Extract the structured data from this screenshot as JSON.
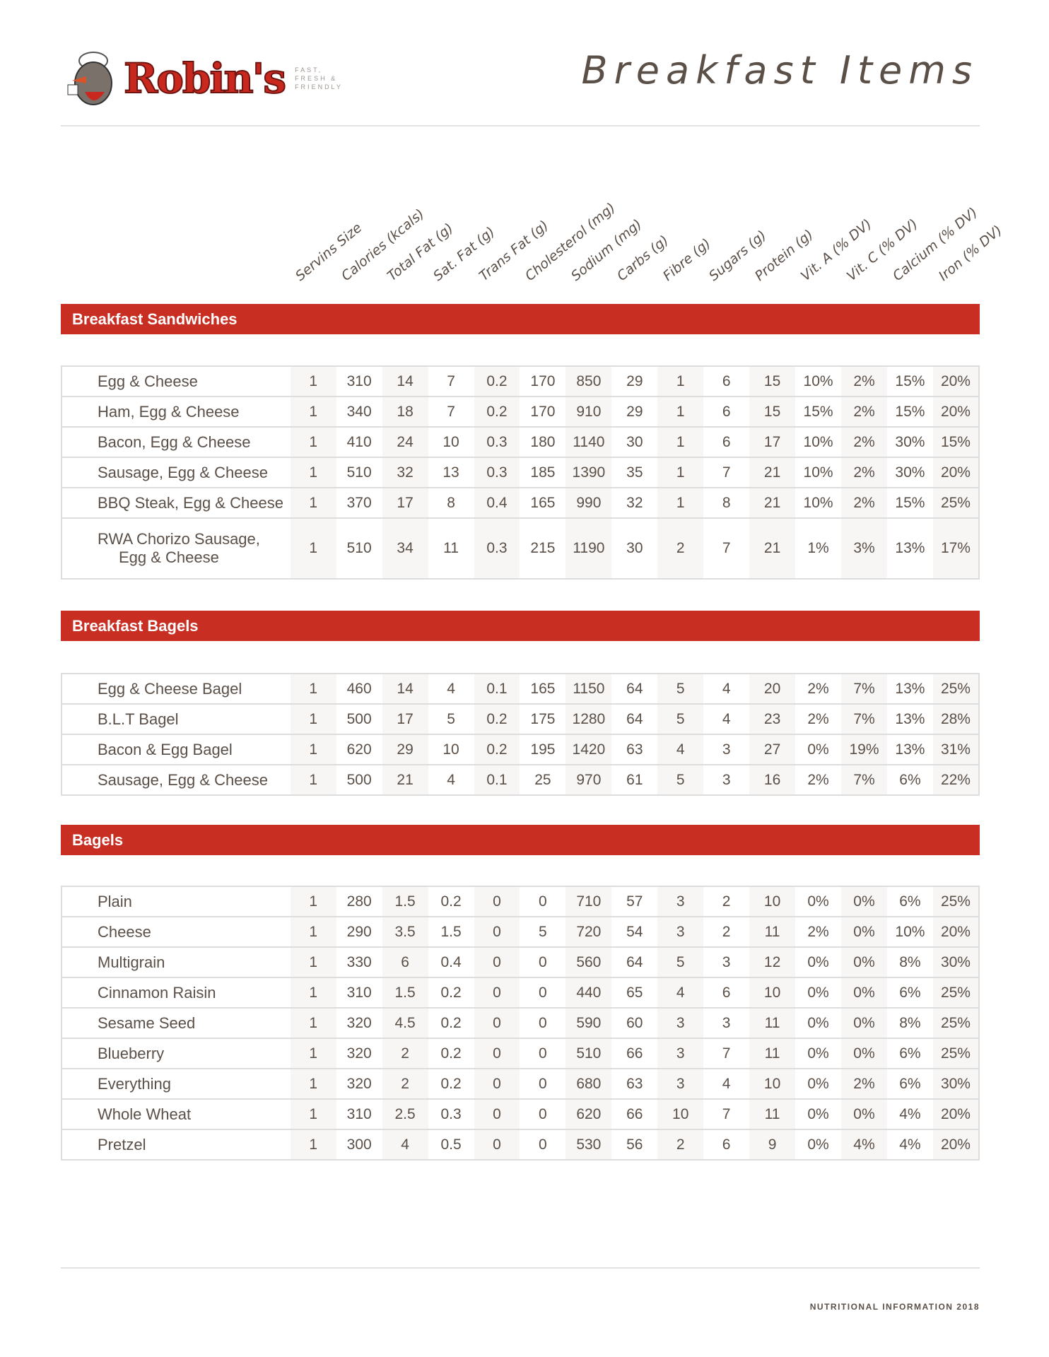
{
  "brand": {
    "name": "Robin's",
    "tagline": "FAST, FRESH & FRIENDLY"
  },
  "page_title": "Breakfast Items",
  "columns": [
    "Servins Size",
    "Calories (kcals)",
    "Total Fat (g)",
    "Sat. Fat (g)",
    "Trans Fat (g)",
    "Cholesterol (mg)",
    "Sodium (mg)",
    "Carbs (g)",
    "Fibre (g)",
    "Sugars (g)",
    "Protein (g)",
    "Vit. A (% DV)",
    "Vit. C (% DV)",
    "Calcium (% DV)",
    "Iron (% DV)"
  ],
  "sections": [
    {
      "title": "Breakfast Sandwiches",
      "rows": [
        {
          "name": "Egg & Cheese",
          "values": [
            "1",
            "310",
            "14",
            "7",
            "0.2",
            "170",
            "850",
            "29",
            "1",
            "6",
            "15",
            "10%",
            "2%",
            "15%",
            "20%"
          ]
        },
        {
          "name": "Ham, Egg & Cheese",
          "values": [
            "1",
            "340",
            "18",
            "7",
            "0.2",
            "170",
            "910",
            "29",
            "1",
            "6",
            "15",
            "15%",
            "2%",
            "15%",
            "20%"
          ]
        },
        {
          "name": "Bacon, Egg & Cheese",
          "values": [
            "1",
            "410",
            "24",
            "10",
            "0.3",
            "180",
            "1140",
            "30",
            "1",
            "6",
            "17",
            "10%",
            "2%",
            "30%",
            "15%"
          ]
        },
        {
          "name": "Sausage, Egg & Cheese",
          "values": [
            "1",
            "510",
            "32",
            "13",
            "0.3",
            "185",
            "1390",
            "35",
            "1",
            "7",
            "21",
            "10%",
            "2%",
            "30%",
            "20%"
          ]
        },
        {
          "name": "BBQ Steak, Egg & Cheese",
          "values": [
            "1",
            "370",
            "17",
            "8",
            "0.4",
            "165",
            "990",
            "32",
            "1",
            "8",
            "21",
            "10%",
            "2%",
            "15%",
            "25%"
          ]
        },
        {
          "name": "RWA Chorizo Sausage,",
          "name2": "Egg & Cheese",
          "values": [
            "1",
            "510",
            "34",
            "11",
            "0.3",
            "215",
            "1190",
            "30",
            "2",
            "7",
            "21",
            "1%",
            "3%",
            "13%",
            "17%"
          ]
        }
      ]
    },
    {
      "title": "Breakfast Bagels",
      "rows": [
        {
          "name": "Egg & Cheese Bagel",
          "values": [
            "1",
            "460",
            "14",
            "4",
            "0.1",
            "165",
            "1150",
            "64",
            "5",
            "4",
            "20",
            "2%",
            "7%",
            "13%",
            "25%"
          ]
        },
        {
          "name": "B.L.T Bagel",
          "values": [
            "1",
            "500",
            "17",
            "5",
            "0.2",
            "175",
            "1280",
            "64",
            "5",
            "4",
            "23",
            "2%",
            "7%",
            "13%",
            "28%"
          ]
        },
        {
          "name": "Bacon & Egg Bagel",
          "values": [
            "1",
            "620",
            "29",
            "10",
            "0.2",
            "195",
            "1420",
            "63",
            "4",
            "3",
            "27",
            "0%",
            "19%",
            "13%",
            "31%"
          ]
        },
        {
          "name": "Sausage, Egg & Cheese",
          "values": [
            "1",
            "500",
            "21",
            "4",
            "0.1",
            "25",
            "970",
            "61",
            "5",
            "3",
            "16",
            "2%",
            "7%",
            "6%",
            "22%"
          ]
        }
      ]
    },
    {
      "title": "Bagels",
      "rows": [
        {
          "name": "Plain",
          "values": [
            "1",
            "280",
            "1.5",
            "0.2",
            "0",
            "0",
            "710",
            "57",
            "3",
            "2",
            "10",
            "0%",
            "0%",
            "6%",
            "25%"
          ]
        },
        {
          "name": "Cheese",
          "values": [
            "1",
            "290",
            "3.5",
            "1.5",
            "0",
            "5",
            "720",
            "54",
            "3",
            "2",
            "11",
            "2%",
            "0%",
            "10%",
            "20%"
          ]
        },
        {
          "name": "Multigrain",
          "values": [
            "1",
            "330",
            "6",
            "0.4",
            "0",
            "0",
            "560",
            "64",
            "5",
            "3",
            "12",
            "0%",
            "0%",
            "8%",
            "30%"
          ]
        },
        {
          "name": "Cinnamon Raisin",
          "values": [
            "1",
            "310",
            "1.5",
            "0.2",
            "0",
            "0",
            "440",
            "65",
            "4",
            "6",
            "10",
            "0%",
            "0%",
            "6%",
            "25%"
          ]
        },
        {
          "name": "Sesame Seed",
          "values": [
            "1",
            "320",
            "4.5",
            "0.2",
            "0",
            "0",
            "590",
            "60",
            "3",
            "3",
            "11",
            "0%",
            "0%",
            "8%",
            "25%"
          ]
        },
        {
          "name": "Blueberry",
          "values": [
            "1",
            "320",
            "2",
            "0.2",
            "0",
            "0",
            "510",
            "66",
            "3",
            "7",
            "11",
            "0%",
            "0%",
            "6%",
            "25%"
          ]
        },
        {
          "name": "Everything",
          "values": [
            "1",
            "320",
            "2",
            "0.2",
            "0",
            "0",
            "680",
            "63",
            "3",
            "4",
            "10",
            "0%",
            "2%",
            "6%",
            "30%"
          ]
        },
        {
          "name": "Whole Wheat",
          "values": [
            "1",
            "310",
            "2.5",
            "0.3",
            "0",
            "0",
            "620",
            "66",
            "10",
            "7",
            "11",
            "0%",
            "0%",
            "4%",
            "20%"
          ]
        },
        {
          "name": "Pretzel",
          "values": [
            "1",
            "300",
            "4",
            "0.5",
            "0",
            "0",
            "530",
            "56",
            "2",
            "6",
            "9",
            "0%",
            "4%",
            "4%",
            "20%"
          ]
        }
      ]
    }
  ],
  "footer": "NUTRITIONAL INFORMATION 2018",
  "colors": {
    "accent": "#c92e23",
    "text": "#5b5048"
  }
}
